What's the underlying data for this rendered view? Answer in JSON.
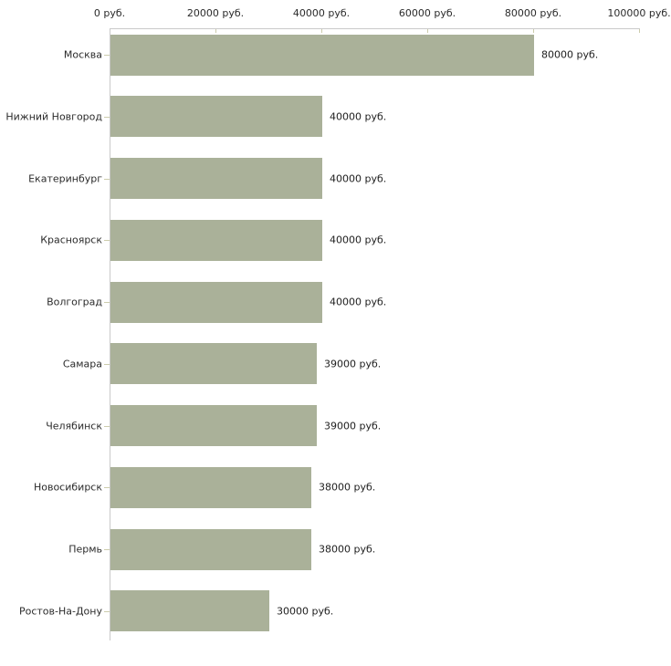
{
  "chart_data": {
    "type": "bar",
    "orientation": "horizontal",
    "title": "",
    "xlabel": "",
    "ylabel": "",
    "unit": "руб.",
    "categories": [
      "Москва",
      "Нижний Новгород",
      "Екатеринбург",
      "Красноярск",
      "Волгоград",
      "Самара",
      "Челябинск",
      "Новосибирск",
      "Пермь",
      "Ростов-На-Дону"
    ],
    "values": [
      80000,
      40000,
      40000,
      40000,
      40000,
      39000,
      39000,
      38000,
      38000,
      30000
    ],
    "value_labels": [
      "80000 руб.",
      "40000 руб.",
      "40000 руб.",
      "40000 руб.",
      "40000 руб.",
      "39000 руб.",
      "39000 руб.",
      "38000 руб.",
      "38000 руб.",
      "30000 руб."
    ],
    "x_ticks": [
      {
        "value": 0,
        "label": "0 руб."
      },
      {
        "value": 20000,
        "label": "20000 руб."
      },
      {
        "value": 40000,
        "label": "40000 руб."
      },
      {
        "value": 60000,
        "label": "60000 руб."
      },
      {
        "value": 80000,
        "label": "80000 руб."
      },
      {
        "value": 100000,
        "label": "100000 руб."
      }
    ],
    "xlim": [
      0,
      100000
    ],
    "grid": false,
    "legend": "none",
    "axis_position": "top-left",
    "value_label_position": "right-of-bar",
    "colors": {
      "bar_fill": "#aab199",
      "axis_line": "#c9c9c9",
      "tick_mark": "#ccccac",
      "text": "#2b2b2b"
    }
  }
}
